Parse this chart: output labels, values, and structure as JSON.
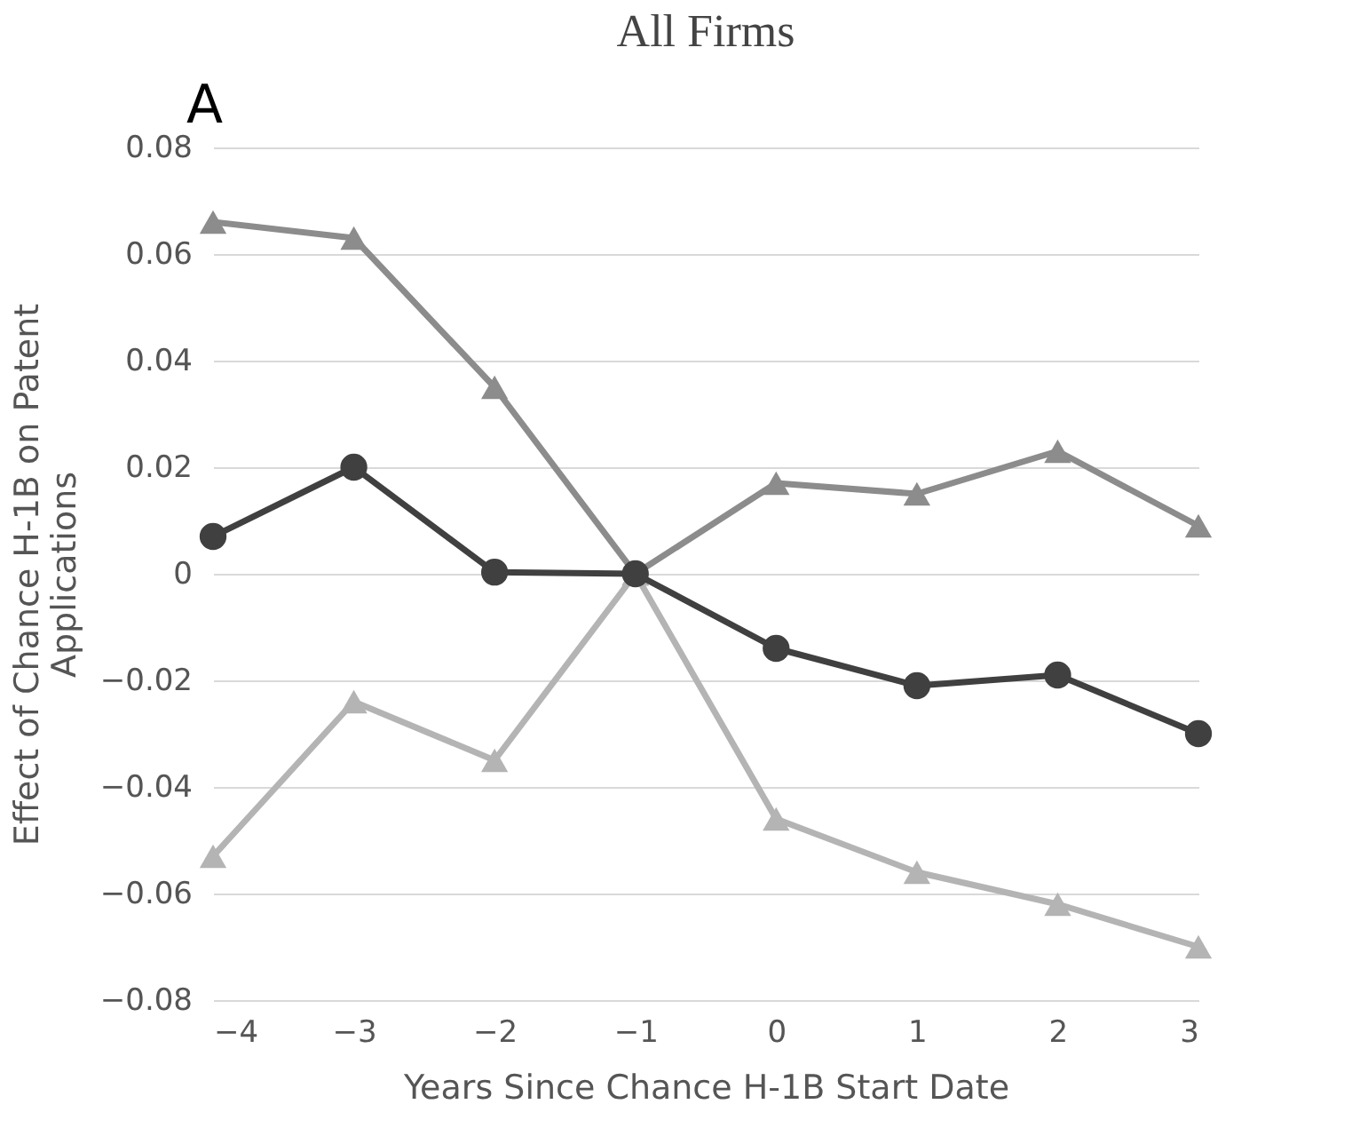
{
  "chart_data": {
    "type": "line",
    "title": "All Firms",
    "xlabel": "Years Since Chance H-1B Start Date",
    "ylabel": "Effect of Chance H-1B on Patent\nApplications",
    "annotations": [
      "A"
    ],
    "x": [
      -4,
      -3,
      -2,
      -1,
      0,
      1,
      2,
      3
    ],
    "series": [
      {
        "color": "#8c8c8c",
        "marker": "triangle",
        "values": [
          0.066,
          0.063,
          0.035,
          0.0,
          0.017,
          0.015,
          0.023,
          0.009
        ]
      },
      {
        "color": "#b4b4b4",
        "marker": "triangle",
        "values": [
          -0.053,
          -0.024,
          -0.035,
          0.0,
          -0.046,
          -0.056,
          -0.062,
          -0.07
        ]
      },
      {
        "color": "#404040",
        "marker": "circle",
        "values": [
          0.007,
          0.02,
          0.0003,
          0.0,
          -0.014,
          -0.021,
          -0.019,
          -0.03
        ]
      }
    ],
    "xlim": [
      -4,
      3
    ],
    "xticks": [
      -4,
      -3,
      -2,
      -1,
      0,
      1,
      2,
      3
    ],
    "ylim": [
      -0.08,
      0.08
    ],
    "yticks": [
      -0.08,
      -0.06,
      -0.04,
      -0.02,
      0,
      0.02,
      0.04,
      0.06,
      0.08
    ],
    "grid": "y",
    "line_style": "solid"
  }
}
